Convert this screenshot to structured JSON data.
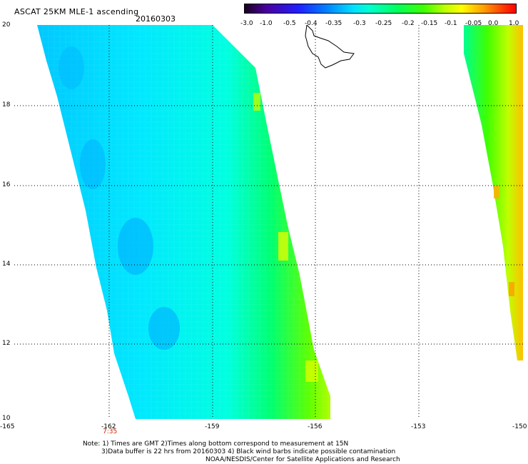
{
  "header": {
    "title": "ASCAT 25KM MLE-1 ascending",
    "date": "20160303"
  },
  "colorbar": {
    "ticks": [
      "-3.0",
      "-1.0",
      "-0.5",
      "-0.4",
      "-0.35",
      "-0.3",
      "-0.25",
      "-0.2",
      "-0.15",
      "-0.1",
      "-0.05",
      "0.0",
      "1.0"
    ],
    "colors": [
      "#1a0020",
      "#2020ff",
      "#00e0ff",
      "#00ff60",
      "#ffff00",
      "#ff0000"
    ]
  },
  "map": {
    "y_labels": [
      "20",
      "18",
      "16",
      "14",
      "12",
      "10"
    ],
    "x_labels": [
      "-165",
      "-162",
      "-159",
      "-156",
      "-153",
      "-150"
    ],
    "time_label": "7:35",
    "swath_colors": [
      "#00e8ff",
      "#00ff70",
      "#a0ff00",
      "#ffff00",
      "#ffa000"
    ]
  },
  "notes": {
    "line1": "Note: 1) Times are GMT 2)Times along bottom correspond to measurement at 15N",
    "line2": "3)Data buffer is 22 hrs from 20160303 4) Black wind barbs indicate possible contamination",
    "line3": "NOAA/NESDIS/Center for Satellite Applications and Research"
  }
}
